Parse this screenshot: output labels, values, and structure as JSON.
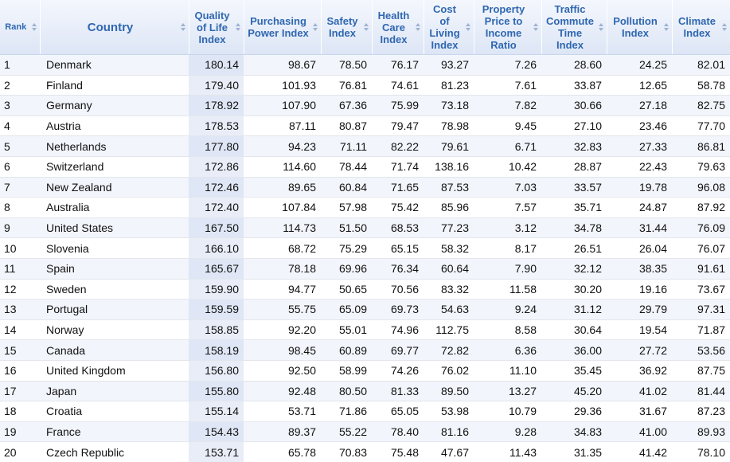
{
  "table": {
    "headers": [
      "Rank",
      "Country",
      "Quality of Life Index",
      "Purchasing Power Index",
      "Safety Index",
      "Health Care Index",
      "Cost of Living Index",
      "Property Price to Income Ratio",
      "Traffic Commute Time Index",
      "Pollution Index",
      "Climate Index"
    ],
    "rows": [
      [
        "1",
        "Denmark",
        "180.14",
        "98.67",
        "78.50",
        "76.17",
        "93.27",
        "7.26",
        "28.60",
        "24.25",
        "82.01"
      ],
      [
        "2",
        "Finland",
        "179.40",
        "101.93",
        "76.81",
        "74.61",
        "81.23",
        "7.61",
        "33.87",
        "12.65",
        "58.78"
      ],
      [
        "3",
        "Germany",
        "178.92",
        "107.90",
        "67.36",
        "75.99",
        "73.18",
        "7.82",
        "30.66",
        "27.18",
        "82.75"
      ],
      [
        "4",
        "Austria",
        "178.53",
        "87.11",
        "80.87",
        "79.47",
        "78.98",
        "9.45",
        "27.10",
        "23.46",
        "77.70"
      ],
      [
        "5",
        "Netherlands",
        "177.80",
        "94.23",
        "71.11",
        "82.22",
        "79.61",
        "6.71",
        "32.83",
        "27.33",
        "86.81"
      ],
      [
        "6",
        "Switzerland",
        "172.86",
        "114.60",
        "78.44",
        "71.74",
        "138.16",
        "10.42",
        "28.87",
        "22.43",
        "79.63"
      ],
      [
        "7",
        "New Zealand",
        "172.46",
        "89.65",
        "60.84",
        "71.65",
        "87.53",
        "7.03",
        "33.57",
        "19.78",
        "96.08"
      ],
      [
        "8",
        "Australia",
        "172.40",
        "107.84",
        "57.98",
        "75.42",
        "85.96",
        "7.57",
        "35.71",
        "24.87",
        "87.92"
      ],
      [
        "9",
        "United States",
        "167.50",
        "114.73",
        "51.50",
        "68.53",
        "77.23",
        "3.12",
        "34.78",
        "31.44",
        "76.09"
      ],
      [
        "10",
        "Slovenia",
        "166.10",
        "68.72",
        "75.29",
        "65.15",
        "58.32",
        "8.17",
        "26.51",
        "26.04",
        "76.07"
      ],
      [
        "11",
        "Spain",
        "165.67",
        "78.18",
        "69.96",
        "76.34",
        "60.64",
        "7.90",
        "32.12",
        "38.35",
        "91.61"
      ],
      [
        "12",
        "Sweden",
        "159.90",
        "94.77",
        "50.65",
        "70.56",
        "83.32",
        "11.58",
        "30.20",
        "19.16",
        "73.67"
      ],
      [
        "13",
        "Portugal",
        "159.59",
        "55.75",
        "65.09",
        "69.73",
        "54.63",
        "9.24",
        "31.12",
        "29.79",
        "97.31"
      ],
      [
        "14",
        "Norway",
        "158.85",
        "92.20",
        "55.01",
        "74.96",
        "112.75",
        "8.58",
        "30.64",
        "19.54",
        "71.87"
      ],
      [
        "15",
        "Canada",
        "158.19",
        "98.45",
        "60.89",
        "69.77",
        "72.82",
        "6.36",
        "36.00",
        "27.72",
        "53.56"
      ],
      [
        "16",
        "United Kingdom",
        "156.80",
        "92.50",
        "58.99",
        "74.26",
        "76.02",
        "11.10",
        "35.45",
        "36.92",
        "87.75"
      ],
      [
        "17",
        "Japan",
        "155.80",
        "92.48",
        "80.50",
        "81.33",
        "89.50",
        "13.27",
        "45.20",
        "41.02",
        "81.44"
      ],
      [
        "18",
        "Croatia",
        "155.14",
        "53.71",
        "71.86",
        "65.05",
        "53.98",
        "10.79",
        "29.36",
        "31.67",
        "87.23"
      ],
      [
        "19",
        "France",
        "154.43",
        "89.37",
        "55.22",
        "78.40",
        "81.16",
        "9.28",
        "34.83",
        "41.00",
        "89.93"
      ],
      [
        "20",
        "Czech Republic",
        "153.71",
        "65.78",
        "70.83",
        "75.48",
        "47.67",
        "11.43",
        "31.35",
        "41.42",
        "78.10"
      ]
    ]
  }
}
